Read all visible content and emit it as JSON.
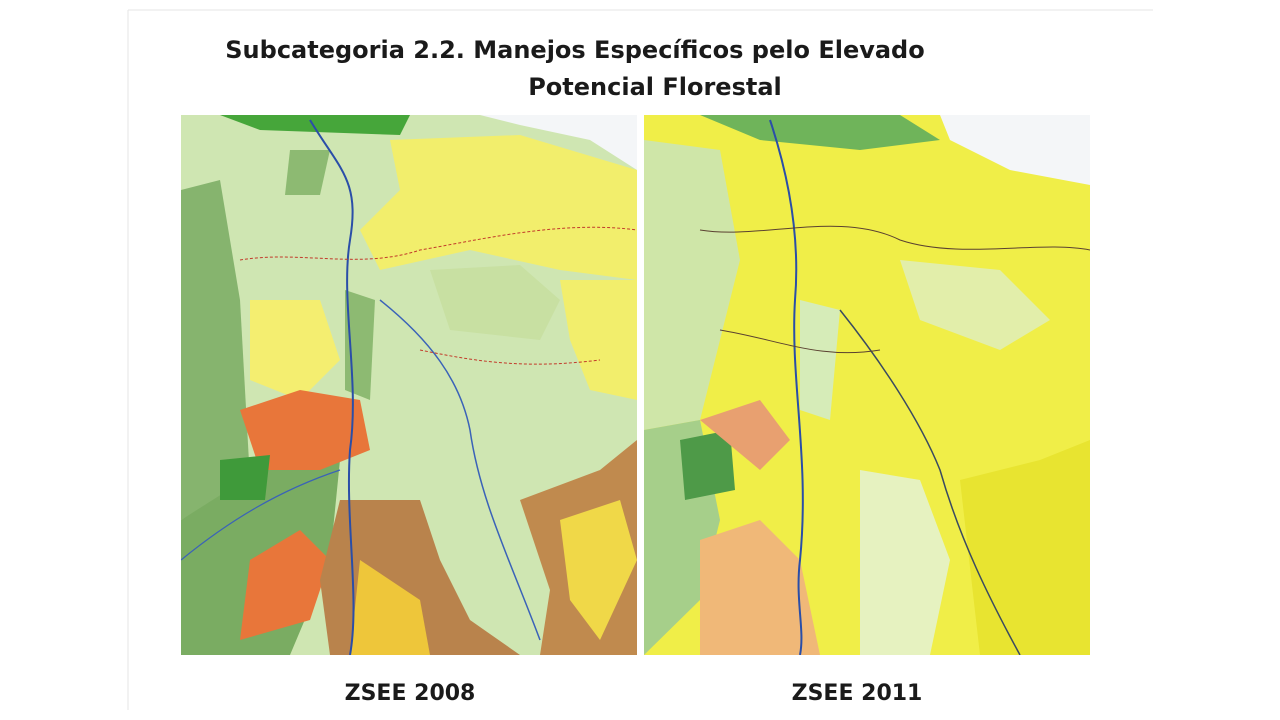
{
  "slide": {
    "title_lines": [
      "Subcategoria 2.2. Manejos Específicos pelo Elevado",
      "Potencial Florestal"
    ],
    "maps": [
      {
        "caption": "ZSEE 2008"
      },
      {
        "caption": "ZSEE 2011"
      }
    ]
  }
}
